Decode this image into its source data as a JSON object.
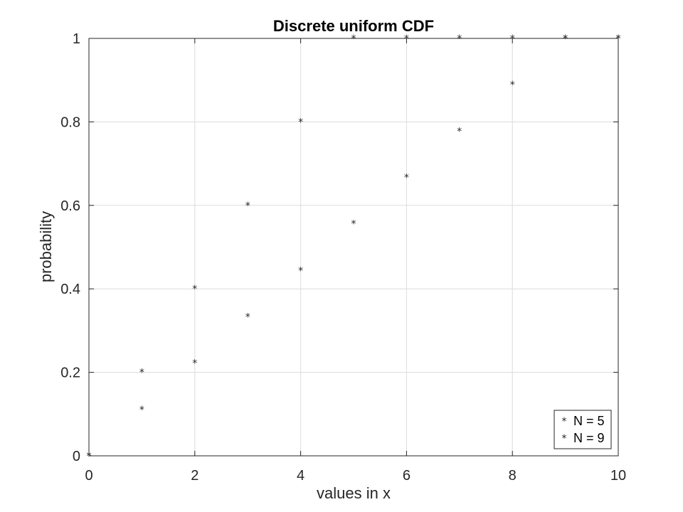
{
  "chart_data": {
    "type": "scatter",
    "title": "Discrete uniform CDF",
    "xlabel": "values in x",
    "ylabel": "probability",
    "xlim": [
      0,
      10
    ],
    "ylim": [
      0,
      1
    ],
    "xticks": [
      "0",
      "2",
      "4",
      "6",
      "8",
      "10"
    ],
    "yticks": [
      "0",
      "0.2",
      "0.4",
      "0.6",
      "0.8",
      "1"
    ],
    "grid": true,
    "legend_position": "bottom-right",
    "marker": "*",
    "series": [
      {
        "name": "N = 5",
        "color": "#0000ff",
        "x": [
          0,
          1,
          2,
          3,
          4,
          5,
          6,
          7,
          8,
          9,
          10
        ],
        "y": [
          0,
          0.2,
          0.4,
          0.6,
          0.8,
          1,
          1,
          1,
          1,
          1,
          1
        ]
      },
      {
        "name": "N = 9",
        "color": "#00ff00",
        "x": [
          0,
          1,
          2,
          3,
          4,
          5,
          6,
          7,
          8,
          9,
          10
        ],
        "y": [
          0,
          0.111,
          0.222,
          0.333,
          0.444,
          0.556,
          0.667,
          0.778,
          0.889,
          1,
          1
        ]
      }
    ]
  }
}
